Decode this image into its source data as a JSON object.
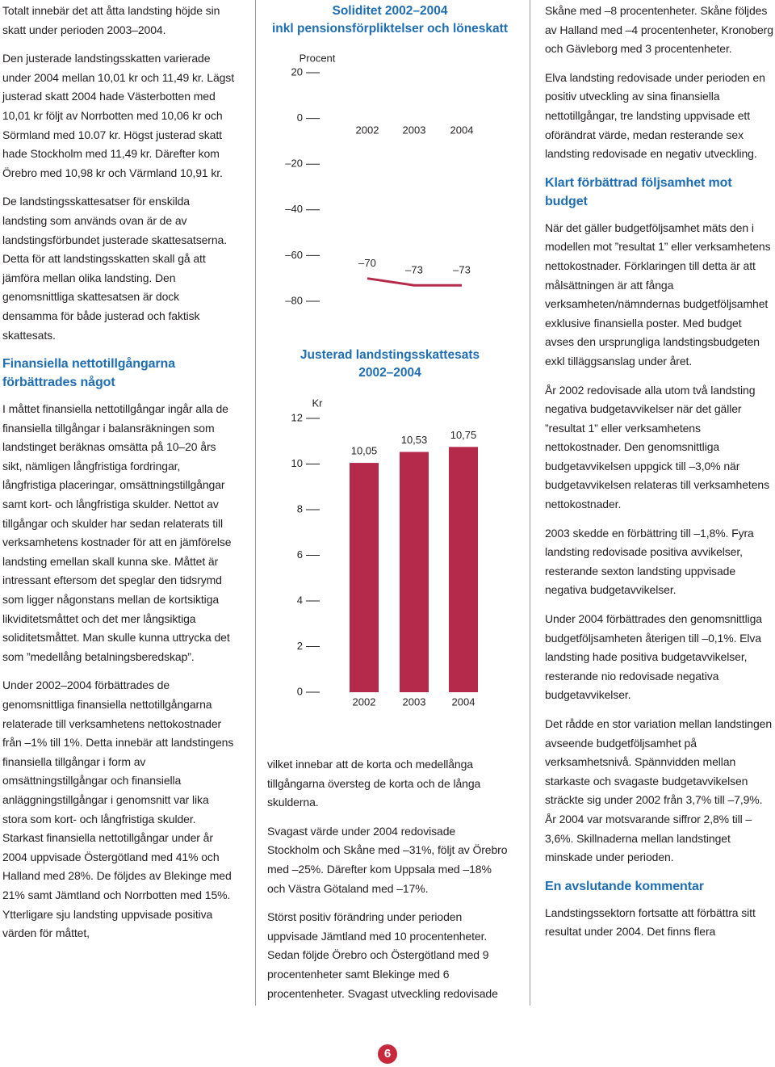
{
  "chart_data": [
    {
      "type": "line",
      "title": "Soliditet 2002–2004",
      "subtitle": "inkl pensionsförpliktelser och löneskatt",
      "y_label": "Procent",
      "categories": [
        "2002",
        "2003",
        "2004"
      ],
      "values": [
        -70,
        -73,
        -73
      ],
      "value_labels": [
        "–70",
        "–73",
        "–73"
      ],
      "color": "#b5294a",
      "ylim": [
        -80,
        20
      ],
      "yticks": [
        20,
        0,
        {
          "value": -20,
          "label": "–20"
        },
        {
          "value": -40,
          "label": "–40"
        },
        {
          "value": -60,
          "label": "–60"
        },
        {
          "value": -80,
          "label": "–80"
        }
      ]
    },
    {
      "type": "bar",
      "title": "Justerad landstingsskattesats",
      "subtitle": "2002–2004",
      "y_label": "Kr",
      "categories": [
        "2002",
        "2003",
        "2004"
      ],
      "values": [
        10.05,
        10.53,
        10.75
      ],
      "value_labels": [
        "10,05",
        "10,53",
        "10,75"
      ],
      "color": "#b5294a",
      "ylim": [
        0,
        12
      ],
      "yticks": [
        12,
        10,
        8,
        6,
        4,
        2,
        0
      ]
    }
  ],
  "columns": [
    [
      {
        "p": "Totalt innebär det att åtta landsting höjde sin skatt under perioden 2003–2004."
      },
      {
        "p": "Den justerade landstingsskatten varierade under 2004 mellan 10,01 kr och 11,49 kr. Lägst justerad skatt 2004 hade Västerbotten med 10,01 kr följt av Norrbotten med 10,06 kr och Sörmland med 10.07 kr. Högst justerad skatt hade Stockholm med 11,49 kr. Därefter kom Örebro med 10,98 kr och Värmland 10,91 kr."
      },
      {
        "p": "De landstingsskattesatser för enskilda landsting som används ovan är de av landstingsförbundet justerade skattesatserna. Detta för att landstingsskatten skall gå att jämföra mellan olika landsting. Den genomsnittliga skattesatsen är dock densamma för både justerad och faktisk skattesats."
      },
      {
        "h": "Finansiella nettotillgångarna förbättrades något"
      },
      {
        "p": "I måttet finansiella nettotillgångar ingår alla de finansiella tillgångar i balansräkningen som landstinget beräknas omsätta på 10–20 års sikt, nämligen långfristiga fordringar, långfristiga placeringar, omsättningstillgångar samt kort- och långfristiga skulder. Nettot av tillgångar och skulder har sedan relaterats till verksamhetens kostnader för att en jämförelse landsting emellan skall kunna ske. Måttet är intressant eftersom det speglar den tidsrymd som ligger någonstans mellan de kortsiktiga likviditetsmåttet och det mer långsiktiga soliditetsmåttet. Man skulle kunna uttrycka det som ”medellång betalningsberedskap”."
      },
      {
        "p": "Under 2002–2004 förbättrades de genomsnittliga finansiella nettotillgångarna relaterade till verksamhetens nettokostnader från –1% till 1%. Detta innebär att landstingens finansiella tillgångar i form av omsättningstillgångar och finansiella anläggningstillgångar i genomsnitt var lika stora som kort- och långfristiga skulder. Starkast finansiella nettotillgångar under år 2004 uppvisade Östergötland med 41% och Halland med 28%. De följdes av Blekinge med 21% samt Jämtland och Norrbotten med 15%. Ytterligare sju landsting uppvisade positiva värden för måttet,"
      }
    ],
    [
      {
        "p": "vilket innebar att de korta och medellånga tillgångarna översteg de korta och de långa skulderna."
      },
      {
        "p": "Svagast värde under 2004 redovisade Stockholm och Skåne med –31%, följt av Örebro med –25%. Därefter kom Uppsala med –18% och Västra Götaland med –17%."
      },
      {
        "p": "Störst positiv förändring under perioden uppvisade Jämtland med 10 procentenheter. Sedan följde Örebro och Östergötland med 9 procentenheter samt Blekinge med 6 procentenheter. Svagast utveckling redovisade"
      }
    ],
    [
      {
        "p": "Skåne med –8 procentenheter. Skåne följdes av Halland med –4 procentenheter, Kronoberg och Gävleborg med 3 procentenheter."
      },
      {
        "p": "Elva landsting redovisade under perioden en positiv utveckling av sina finansiella nettotillgångar, tre landsting uppvisade ett oförändrat värde, medan resterande sex landsting redovisade en negativ utveckling."
      },
      {
        "h": "Klart förbättrad följsamhet mot budget"
      },
      {
        "p": "När det gäller budgetföljsamhet mäts den i modellen mot ”resultat 1” eller verksamhetens nettokostnader. Förklaringen till detta är att målsättningen är att fånga verksamheten/nämndernas budgetföljsamhet exklusive finansiella poster. Med budget avses den ursprungliga landstingsbudgeten exkl tilläggsanslag under året."
      },
      {
        "p": "År 2002 redovisade alla utom två landsting negativa budgetavvikelser när det gäller ”resultat 1” eller verksamhetens nettokostnader. Den genomsnittliga budgetavvikelsen uppgick till –3,0% när budgetavvikelsen relateras till verksamhetens nettokostnader."
      },
      {
        "p": "2003 skedde en förbättring till –1,8%. Fyra landsting redovisade positiva avvikelser, resterande sexton landsting uppvisade negativa budgetavvikelser."
      },
      {
        "p": "Under 2004 förbättrades den genomsnittliga budgetföljsamheten återigen till –0,1%. Elva landsting hade positiva budgetavvikelser, resterande nio redovisade negativa budgetavvikelser."
      },
      {
        "p": "Det rådde en stor variation mellan landstingen avseende budgetföljsamhet på verksamhetsnivå. Spännvidden mellan starkaste och svagaste budgetavvikelsen sträckte sig under 2002 från 3,7% till –7,9%. År 2004 var motsvarande siffror 2,8% till –3,6%. Skillnaderna mellan landstinget minskade under perioden."
      },
      {
        "h": "En avslutande kommentar"
      },
      {
        "p": "Landstingssektorn fortsatte att förbättra sitt resultat under 2004. Det finns flera"
      }
    ]
  ],
  "page_number": "6"
}
